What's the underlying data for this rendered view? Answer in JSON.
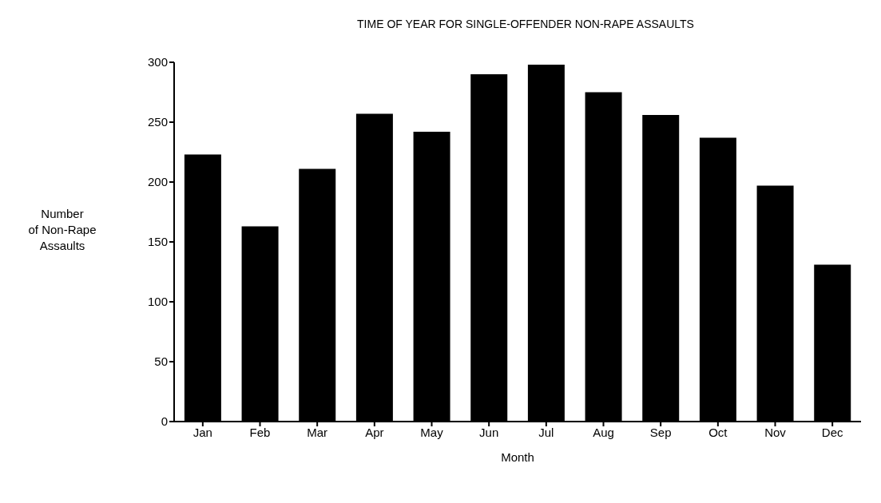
{
  "chart_data": {
    "type": "bar",
    "title": "TIME OF YEAR FOR SINGLE-OFFENDER NON-RAPE ASSAULTS",
    "xlabel": "Month",
    "ylabel": "Number of Non-Rape Assaults",
    "categories": [
      "Jan",
      "Feb",
      "Mar",
      "Apr",
      "May",
      "Jun",
      "Jul",
      "Aug",
      "Sep",
      "Oct",
      "Nov",
      "Dec"
    ],
    "values": [
      223,
      163,
      211,
      257,
      242,
      290,
      298,
      275,
      256,
      237,
      197,
      131
    ],
    "color": "#000000",
    "ylim": [
      0,
      300
    ],
    "yticks": [
      0,
      50,
      100,
      150,
      200,
      250,
      300
    ],
    "grid": false,
    "legend": false
  }
}
